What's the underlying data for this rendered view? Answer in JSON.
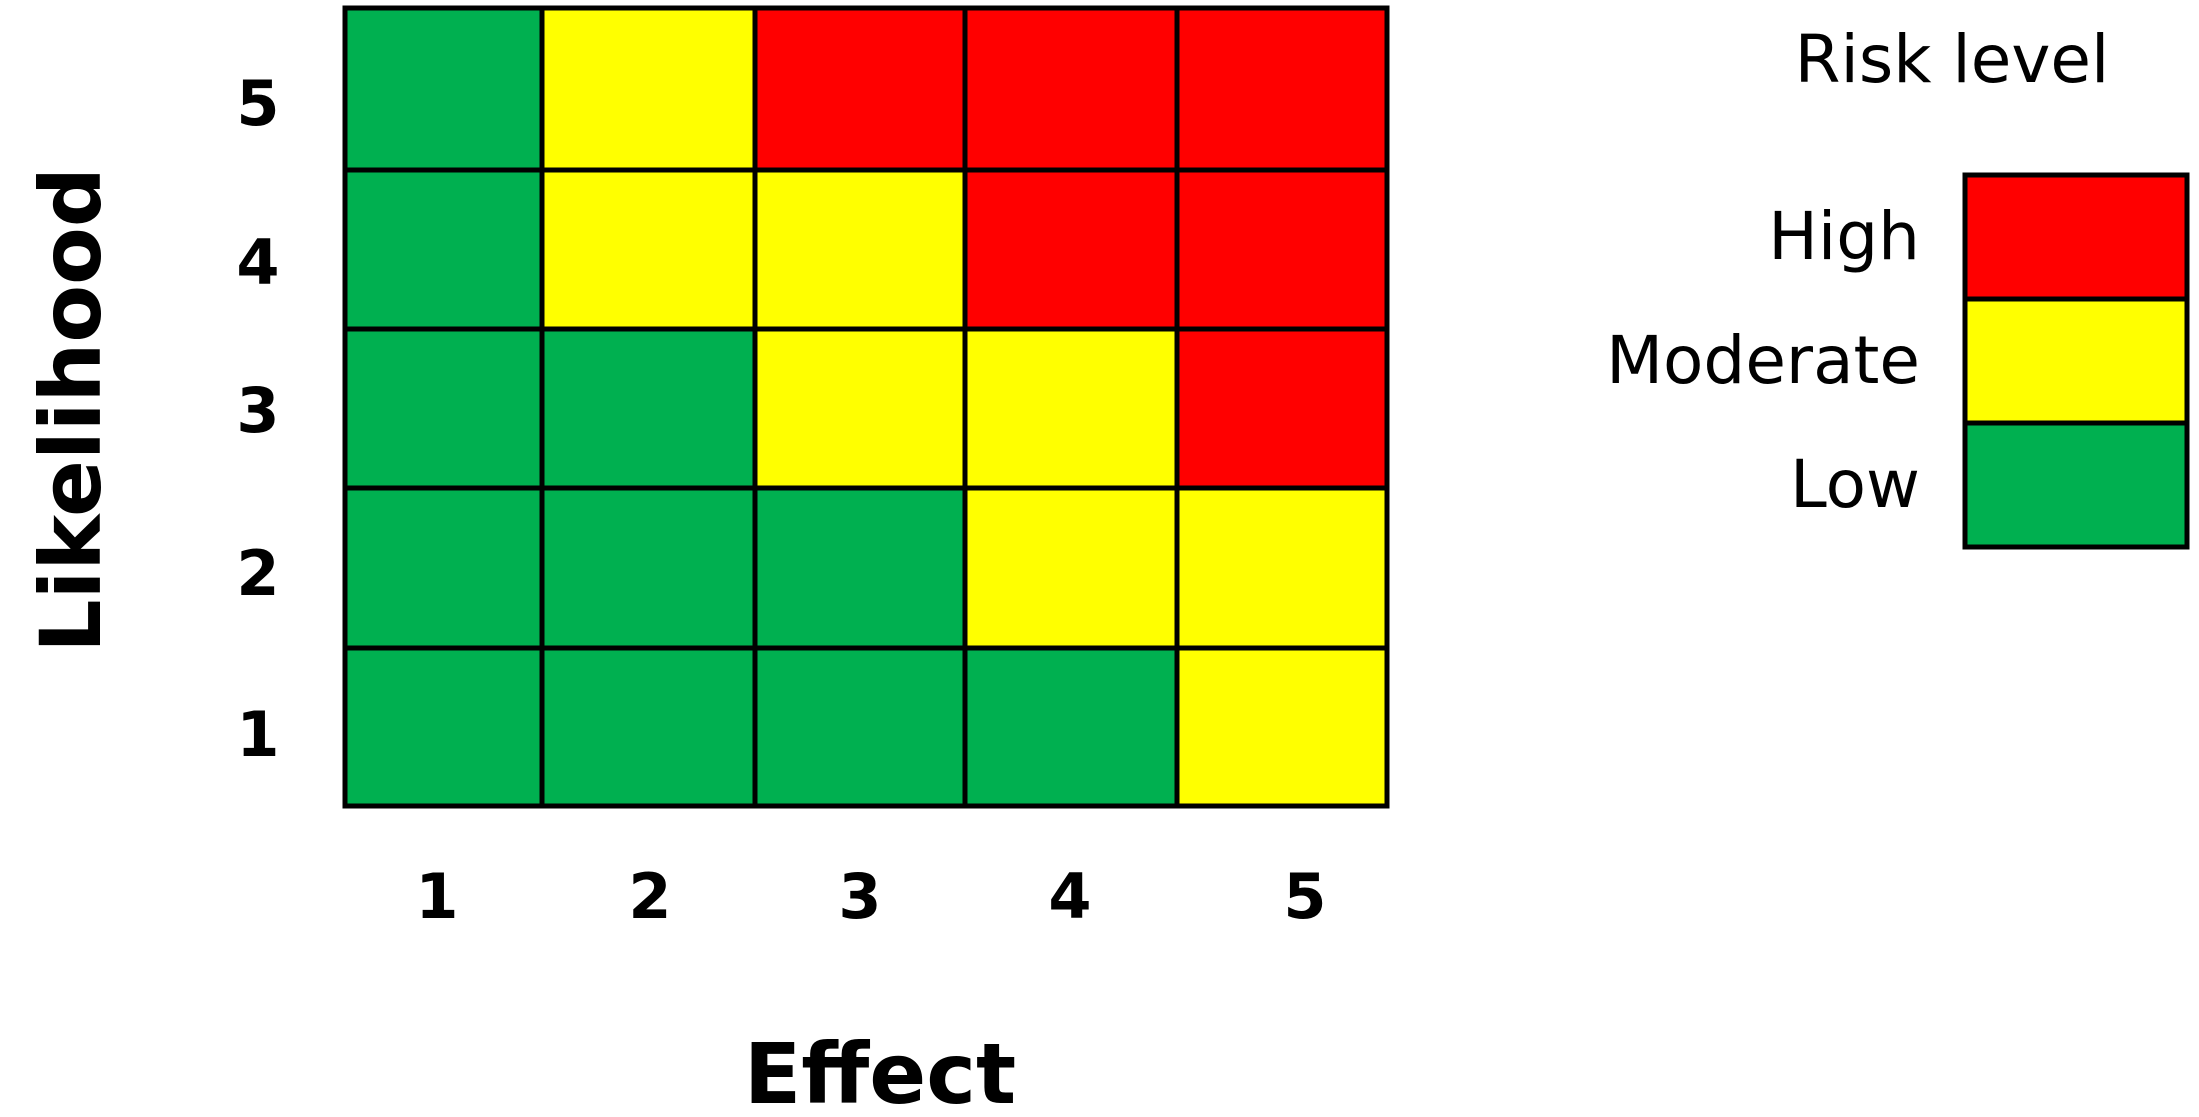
{
  "chart_data": {
    "type": "heatmap",
    "xlabel": "Effect",
    "ylabel": "Likelihood",
    "x_categories": [
      "1",
      "2",
      "3",
      "4",
      "5"
    ],
    "y_categories": [
      "1",
      "2",
      "3",
      "4",
      "5"
    ],
    "cells": [
      {
        "effect": 1,
        "likelihood": 5,
        "level": "Low"
      },
      {
        "effect": 2,
        "likelihood": 5,
        "level": "Moderate"
      },
      {
        "effect": 3,
        "likelihood": 5,
        "level": "High"
      },
      {
        "effect": 4,
        "likelihood": 5,
        "level": "High"
      },
      {
        "effect": 5,
        "likelihood": 5,
        "level": "High"
      },
      {
        "effect": 1,
        "likelihood": 4,
        "level": "Low"
      },
      {
        "effect": 2,
        "likelihood": 4,
        "level": "Moderate"
      },
      {
        "effect": 3,
        "likelihood": 4,
        "level": "Moderate"
      },
      {
        "effect": 4,
        "likelihood": 4,
        "level": "High"
      },
      {
        "effect": 5,
        "likelihood": 4,
        "level": "High"
      },
      {
        "effect": 1,
        "likelihood": 3,
        "level": "Low"
      },
      {
        "effect": 2,
        "likelihood": 3,
        "level": "Low"
      },
      {
        "effect": 3,
        "likelihood": 3,
        "level": "Moderate"
      },
      {
        "effect": 4,
        "likelihood": 3,
        "level": "Moderate"
      },
      {
        "effect": 5,
        "likelihood": 3,
        "level": "High"
      },
      {
        "effect": 1,
        "likelihood": 2,
        "level": "Low"
      },
      {
        "effect": 2,
        "likelihood": 2,
        "level": "Low"
      },
      {
        "effect": 3,
        "likelihood": 2,
        "level": "Low"
      },
      {
        "effect": 4,
        "likelihood": 2,
        "level": "Moderate"
      },
      {
        "effect": 5,
        "likelihood": 2,
        "level": "Moderate"
      },
      {
        "effect": 1,
        "likelihood": 1,
        "level": "Low"
      },
      {
        "effect": 2,
        "likelihood": 1,
        "level": "Low"
      },
      {
        "effect": 3,
        "likelihood": 1,
        "level": "Low"
      },
      {
        "effect": 4,
        "likelihood": 1,
        "level": "Low"
      },
      {
        "effect": 5,
        "likelihood": 1,
        "level": "Moderate"
      }
    ],
    "legend": {
      "title": "Risk level",
      "placement": "right",
      "items": [
        {
          "label": "High",
          "color": "#ff0000"
        },
        {
          "label": "Moderate",
          "color": "#ffff00"
        },
        {
          "label": "Low",
          "color": "#00b050"
        }
      ]
    },
    "grid": true
  }
}
